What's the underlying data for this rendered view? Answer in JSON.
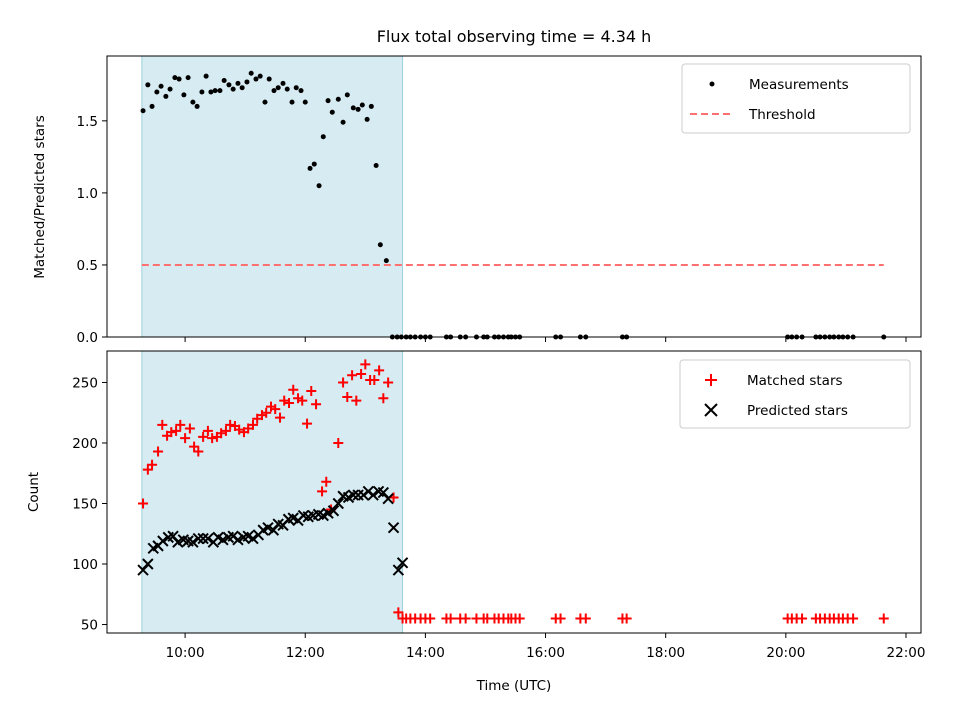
{
  "title": "Flux total observing time = 4.34 h",
  "colors": {
    "highlight": "#add8e6",
    "measurements": "#000000",
    "threshold": "#ff7070",
    "matched": "#ff0000",
    "predicted": "#000000"
  },
  "chart_data": [
    {
      "type": "scatter",
      "ylabel": "Matched/Predicted stars",
      "xlim": [
        8.7,
        22.25
      ],
      "ylim": [
        0,
        1.95
      ],
      "yticks": [
        0.0,
        0.5,
        1.0,
        1.5
      ],
      "ytick_labels": [
        "0.0",
        "0.5",
        "1.0",
        "1.5"
      ],
      "x_unit": "hours UTC",
      "highlight_span": [
        9.28,
        13.62
      ],
      "legend": {
        "placement": "top-right",
        "entries": [
          "Measurements",
          "Threshold"
        ]
      },
      "series": [
        {
          "name": "Measurements",
          "marker": "dot",
          "x": [
            9.3,
            9.38,
            9.45,
            9.53,
            9.6,
            9.68,
            9.75,
            9.83,
            9.9,
            9.98,
            10.05,
            10.13,
            10.2,
            10.28,
            10.35,
            10.43,
            10.5,
            10.58,
            10.65,
            10.73,
            10.8,
            10.88,
            10.95,
            11.03,
            11.1,
            11.18,
            11.25,
            11.33,
            11.4,
            11.48,
            11.55,
            11.63,
            11.7,
            11.78,
            11.85,
            11.93,
            12.0,
            12.08,
            12.15,
            12.23,
            12.3,
            12.38,
            12.45,
            12.55,
            12.63,
            12.7,
            12.8,
            12.88,
            12.95,
            13.03,
            13.1,
            13.18,
            13.25,
            13.35,
            13.45,
            13.53,
            13.6,
            13.68,
            13.75,
            13.83,
            13.92,
            14.0,
            14.08,
            14.35,
            14.42,
            14.58,
            14.67,
            14.85,
            14.97,
            15.03,
            15.15,
            15.22,
            15.3,
            15.38,
            15.43,
            15.5,
            15.57,
            16.17,
            16.25,
            16.58,
            16.67,
            17.28,
            17.35,
            20.03,
            20.1,
            20.18,
            20.27,
            20.5,
            20.57,
            20.65,
            20.73,
            20.8,
            20.88,
            20.95,
            21.03,
            21.12,
            21.63
          ],
          "y": [
            1.57,
            1.75,
            1.6,
            1.7,
            1.74,
            1.67,
            1.72,
            1.8,
            1.79,
            1.68,
            1.8,
            1.63,
            1.6,
            1.7,
            1.81,
            1.7,
            1.71,
            1.71,
            1.78,
            1.75,
            1.72,
            1.76,
            1.73,
            1.77,
            1.83,
            1.79,
            1.81,
            1.63,
            1.79,
            1.71,
            1.73,
            1.76,
            1.72,
            1.63,
            1.73,
            1.71,
            1.63,
            1.17,
            1.2,
            1.05,
            1.39,
            1.64,
            1.56,
            1.65,
            1.49,
            1.68,
            1.59,
            1.58,
            1.61,
            1.51,
            1.6,
            1.19,
            0.64,
            0.53,
            0.0,
            0.0,
            0.0,
            0.0,
            0.0,
            0.0,
            0.0,
            0.0,
            0.0,
            0.0,
            0.0,
            0.0,
            0.0,
            0.0,
            0.0,
            0.0,
            0.0,
            0.0,
            0.0,
            0.0,
            0.0,
            0.0,
            0.0,
            0.0,
            0.0,
            0.0,
            0.0,
            0.0,
            0.0,
            0.0,
            0.0,
            0.0,
            0.0,
            0.0,
            0.0,
            0.0,
            0.0,
            0.0,
            0.0,
            0.0,
            0.0,
            0.0,
            0.0
          ]
        },
        {
          "name": "Threshold",
          "marker": "dashed-line",
          "x": [
            9.28,
            21.63
          ],
          "y": [
            0.5,
            0.5
          ]
        }
      ]
    },
    {
      "type": "scatter",
      "ylabel": "Count",
      "xlabel": "Time (UTC)",
      "xlim": [
        8.7,
        22.25
      ],
      "ylim": [
        43,
        276
      ],
      "yticks": [
        50,
        100,
        150,
        200,
        250
      ],
      "ytick_labels": [
        "50",
        "100",
        "150",
        "200",
        "250"
      ],
      "xticks": [
        10,
        12,
        14,
        16,
        18,
        20,
        22
      ],
      "xtick_labels": [
        "10:00",
        "12:00",
        "14:00",
        "16:00",
        "18:00",
        "20:00",
        "22:00"
      ],
      "x_unit": "hours UTC",
      "highlight_span": [
        9.28,
        13.62
      ],
      "legend": {
        "placement": "top-right",
        "entries": [
          "Matched stars",
          "Predicted stars"
        ]
      },
      "series": [
        {
          "name": "Matched stars",
          "marker": "plus",
          "x": [
            9.3,
            9.38,
            9.45,
            9.55,
            9.62,
            9.7,
            9.77,
            9.85,
            9.92,
            10.0,
            10.08,
            10.15,
            10.22,
            10.3,
            10.38,
            10.45,
            10.53,
            10.6,
            10.68,
            10.75,
            10.83,
            10.9,
            10.98,
            11.05,
            11.13,
            11.2,
            11.28,
            11.35,
            11.43,
            11.5,
            11.58,
            11.65,
            11.73,
            11.8,
            11.88,
            11.95,
            12.03,
            12.1,
            12.18,
            12.28,
            12.35,
            12.43,
            12.55,
            12.63,
            12.7,
            12.78,
            12.85,
            12.93,
            13.0,
            13.08,
            13.15,
            13.23,
            13.3,
            13.38,
            13.47,
            13.55,
            13.62,
            13.68,
            13.75,
            13.83,
            13.92,
            14.0,
            14.08,
            14.35,
            14.42,
            14.58,
            14.67,
            14.85,
            14.97,
            15.03,
            15.15,
            15.22,
            15.3,
            15.38,
            15.43,
            15.5,
            15.57,
            16.17,
            16.25,
            16.58,
            16.67,
            17.28,
            17.35,
            20.03,
            20.1,
            20.18,
            20.27,
            20.5,
            20.57,
            20.65,
            20.73,
            20.8,
            20.88,
            20.95,
            21.03,
            21.12,
            21.63
          ],
          "y": [
            150,
            178,
            182,
            193,
            215,
            206,
            209,
            210,
            215,
            204,
            212,
            197,
            193,
            205,
            210,
            204,
            205,
            208,
            210,
            215,
            214,
            211,
            209,
            212,
            215,
            220,
            223,
            225,
            230,
            228,
            221,
            235,
            233,
            244,
            237,
            235,
            216,
            243,
            232,
            160,
            168,
            145,
            200,
            250,
            238,
            256,
            235,
            257,
            265,
            252,
            252,
            260,
            237,
            250,
            155,
            60,
            55,
            55,
            55,
            55,
            55,
            55,
            55,
            55,
            55,
            55,
            55,
            55,
            55,
            55,
            55,
            55,
            55,
            55,
            55,
            55,
            55,
            55,
            55,
            55,
            55,
            55,
            55,
            55,
            55,
            55,
            55,
            55,
            55,
            55,
            55,
            55,
            55,
            55,
            55,
            55,
            55
          ]
        },
        {
          "name": "Predicted stars",
          "marker": "x",
          "x": [
            9.3,
            9.38,
            9.47,
            9.55,
            9.63,
            9.72,
            9.8,
            9.88,
            9.97,
            10.05,
            10.13,
            10.22,
            10.3,
            10.38,
            10.47,
            10.55,
            10.63,
            10.72,
            10.8,
            10.88,
            10.97,
            11.05,
            11.13,
            11.22,
            11.3,
            11.38,
            11.47,
            11.55,
            11.63,
            11.72,
            11.8,
            11.88,
            11.97,
            12.05,
            12.13,
            12.22,
            12.3,
            12.38,
            12.47,
            12.55,
            12.63,
            12.72,
            12.8,
            12.88,
            12.97,
            13.05,
            13.13,
            13.22,
            13.3,
            13.38,
            13.47,
            13.55,
            13.62
          ],
          "y": [
            95,
            100,
            113,
            115,
            119,
            122,
            123,
            118,
            120,
            119,
            118,
            121,
            121,
            121,
            118,
            122,
            120,
            122,
            123,
            120,
            122,
            123,
            121,
            124,
            128,
            130,
            128,
            133,
            132,
            137,
            138,
            136,
            140,
            139,
            140,
            141,
            140,
            142,
            144,
            150,
            156,
            155,
            157,
            157,
            157,
            160,
            157,
            160,
            159,
            154,
            130,
            95,
            101
          ]
        }
      ]
    }
  ]
}
